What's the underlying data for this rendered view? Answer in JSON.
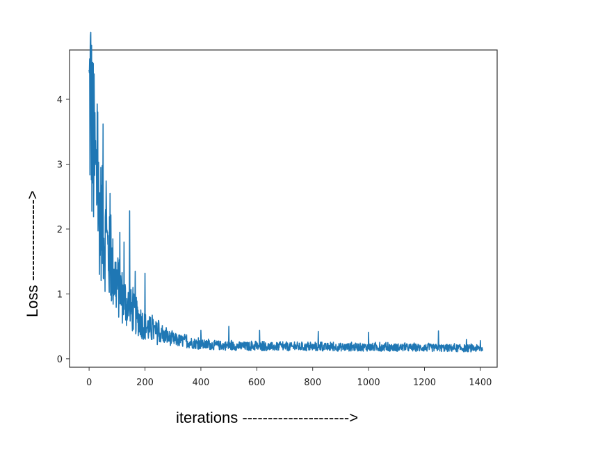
{
  "chart_data": {
    "type": "line",
    "title": "",
    "xlabel": "iterations --------------------->",
    "ylabel": "Loss ---------------->",
    "xlim": [
      -70,
      1460
    ],
    "ylim": [
      -0.13,
      4.76
    ],
    "xticks": [
      0,
      200,
      400,
      600,
      800,
      1000,
      1200,
      1400
    ],
    "yticks": [
      0,
      1,
      2,
      3,
      4
    ],
    "grid": false,
    "legend": "none",
    "colors": {
      "line": "#1f77b4",
      "frame": "#333333",
      "background": "#ffffff"
    },
    "series": [
      {
        "n_points": 1410,
        "x_start": 0,
        "x_end": 1409,
        "trend_points": [
          [
            0,
            3.9
          ],
          [
            5,
            4.1
          ],
          [
            10,
            3.5
          ],
          [
            15,
            3.2
          ],
          [
            20,
            3.0
          ],
          [
            30,
            2.5
          ],
          [
            40,
            2.2
          ],
          [
            50,
            2.0
          ],
          [
            60,
            1.8
          ],
          [
            70,
            1.6
          ],
          [
            80,
            1.4
          ],
          [
            100,
            1.15
          ],
          [
            120,
            0.95
          ],
          [
            140,
            0.8
          ],
          [
            160,
            0.7
          ],
          [
            180,
            0.6
          ],
          [
            200,
            0.5
          ],
          [
            220,
            0.45
          ],
          [
            250,
            0.38
          ],
          [
            300,
            0.3
          ],
          [
            350,
            0.26
          ],
          [
            400,
            0.22
          ],
          [
            500,
            0.2
          ],
          [
            600,
            0.19
          ],
          [
            800,
            0.18
          ],
          [
            1000,
            0.18
          ],
          [
            1200,
            0.17
          ],
          [
            1409,
            0.16
          ]
        ],
        "peaks": [
          [
            0,
            4.45
          ],
          [
            15,
            4.55
          ],
          [
            30,
            3.5
          ],
          [
            50,
            3.62
          ],
          [
            62,
            2.35
          ],
          [
            75,
            2.55
          ],
          [
            110,
            1.95
          ],
          [
            125,
            1.8
          ],
          [
            145,
            2.28
          ],
          [
            165,
            1.35
          ],
          [
            200,
            1.32
          ],
          [
            230,
            0.55
          ],
          [
            400,
            0.44
          ],
          [
            500,
            0.5
          ],
          [
            610,
            0.44
          ],
          [
            820,
            0.42
          ],
          [
            1000,
            0.41
          ],
          [
            1250,
            0.43
          ],
          [
            1350,
            0.3
          ],
          [
            1400,
            0.28
          ]
        ]
      }
    ]
  }
}
